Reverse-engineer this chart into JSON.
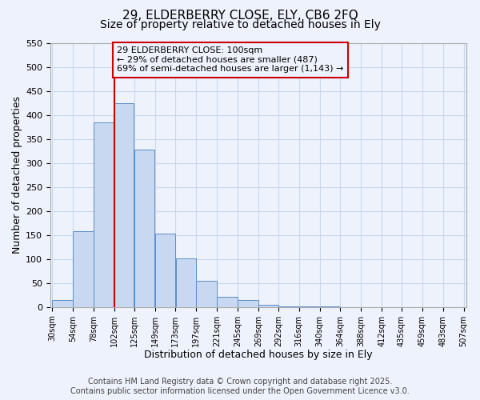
{
  "title": "29, ELDERBERRY CLOSE, ELY, CB6 2FQ",
  "subtitle": "Size of property relative to detached houses in Ely",
  "xlabel": "Distribution of detached houses by size in Ely",
  "ylabel": "Number of detached properties",
  "bar_left_edges": [
    30,
    54,
    78,
    102,
    125,
    149,
    173,
    197,
    221,
    245,
    269,
    292,
    316,
    340,
    364,
    388,
    412,
    435,
    459,
    483
  ],
  "bar_widths": [
    24,
    24,
    24,
    23,
    24,
    24,
    24,
    24,
    24,
    24,
    23,
    24,
    24,
    24,
    24,
    24,
    23,
    24,
    24,
    24
  ],
  "bar_heights": [
    15,
    158,
    385,
    425,
    328,
    153,
    102,
    55,
    22,
    15,
    5,
    2,
    1,
    1,
    0,
    0,
    0,
    0,
    0,
    0
  ],
  "bar_color": "#c8d8f0",
  "bar_edgecolor": "#5b8ec8",
  "reference_line_x": 102,
  "reference_line_color": "#cc0000",
  "annotation_line1": "29 ELDERBERRY CLOSE: 100sqm",
  "annotation_line2": "← 29% of detached houses are smaller (487)",
  "annotation_line3": "69% of semi-detached houses are larger (1,143) →",
  "annotation_box_color": "#cc0000",
  "ylim": [
    0,
    550
  ],
  "xlim": [
    28,
    510
  ],
  "xtick_positions": [
    30,
    54,
    78,
    102,
    125,
    149,
    173,
    197,
    221,
    245,
    269,
    292,
    316,
    340,
    364,
    388,
    412,
    435,
    459,
    483,
    507
  ],
  "xtick_labels": [
    "30sqm",
    "54sqm",
    "78sqm",
    "102sqm",
    "125sqm",
    "149sqm",
    "173sqm",
    "197sqm",
    "221sqm",
    "245sqm",
    "269sqm",
    "292sqm",
    "316sqm",
    "340sqm",
    "364sqm",
    "388sqm",
    "412sqm",
    "435sqm",
    "459sqm",
    "483sqm",
    "507sqm"
  ],
  "ytick_positions": [
    0,
    50,
    100,
    150,
    200,
    250,
    300,
    350,
    400,
    450,
    500,
    550
  ],
  "grid_color": "#c8d8ee",
  "background_color": "#eef2fc",
  "footer_line1": "Contains HM Land Registry data © Crown copyright and database right 2025.",
  "footer_line2": "Contains public sector information licensed under the Open Government Licence v3.0.",
  "title_fontsize": 11,
  "subtitle_fontsize": 10,
  "footer_fontsize": 7
}
